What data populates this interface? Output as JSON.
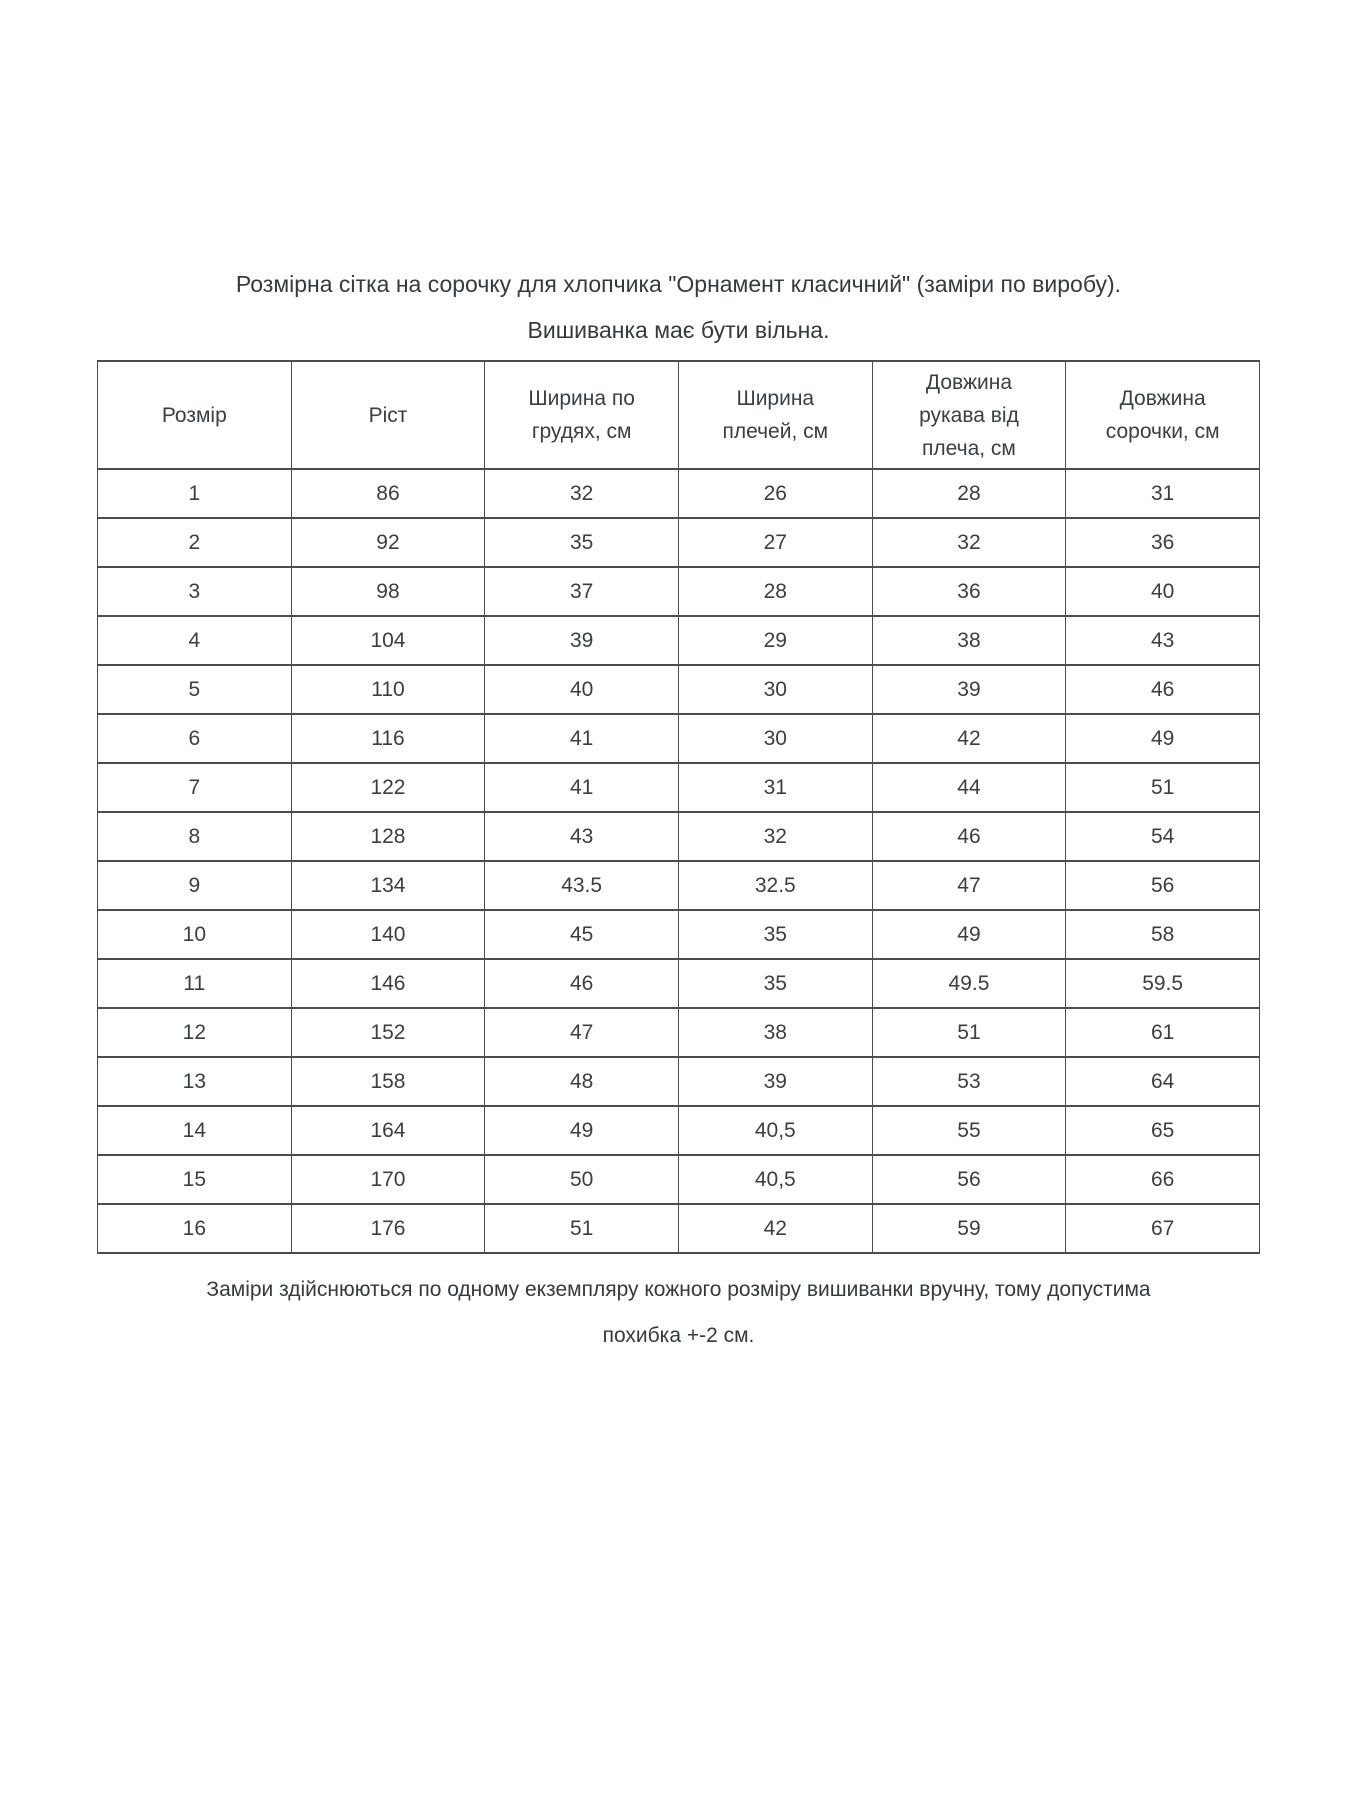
{
  "header": {
    "title_line1": "Розмірна сітка на сорочку для хлопчика \"Орнамент класичний\" (заміри по виробу).",
    "title_line2": "Вишиванка має бути вільна."
  },
  "table": {
    "headers": [
      "Розмір",
      "Ріст",
      "Ширина по\nгрудях, см",
      "Ширина\nплечей, см",
      "Довжина\nрукава від\nплеча, см",
      "Довжина\nсорочки, см"
    ],
    "rows": [
      [
        "1",
        "86",
        "32",
        "26",
        "28",
        "31"
      ],
      [
        "2",
        "92",
        "35",
        "27",
        "32",
        "36"
      ],
      [
        "3",
        "98",
        "37",
        "28",
        "36",
        "40"
      ],
      [
        "4",
        "104",
        "39",
        "29",
        "38",
        "43"
      ],
      [
        "5",
        "110",
        "40",
        "30",
        "39",
        "46"
      ],
      [
        "6",
        "116",
        "41",
        "30",
        "42",
        "49"
      ],
      [
        "7",
        "122",
        "41",
        "31",
        "44",
        "51"
      ],
      [
        "8",
        "128",
        "43",
        "32",
        "46",
        "54"
      ],
      [
        "9",
        "134",
        "43.5",
        "32.5",
        "47",
        "56"
      ],
      [
        "10",
        "140",
        "45",
        "35",
        "49",
        "58"
      ],
      [
        "11",
        "146",
        "46",
        "35",
        "49.5",
        "59.5"
      ],
      [
        "12",
        "152",
        "47",
        "38",
        "51",
        "61"
      ],
      [
        "13",
        "158",
        "48",
        "39",
        "53",
        "64"
      ],
      [
        "14",
        "164",
        "49",
        "40,5",
        "55",
        "65"
      ],
      [
        "15",
        "170",
        "50",
        "40,5",
        "56",
        "66"
      ],
      [
        "16",
        "176",
        "51",
        "42",
        "59",
        "67"
      ]
    ]
  },
  "footer": {
    "line1": "Заміри здійснюються  по одному екземпляру кожного розміру вишиванки вручну, тому допустима",
    "line2": "похибка +-2 см."
  },
  "colors": {
    "background": "#ffffff",
    "text": "#3a3f44",
    "border": "#4d4d4d"
  }
}
